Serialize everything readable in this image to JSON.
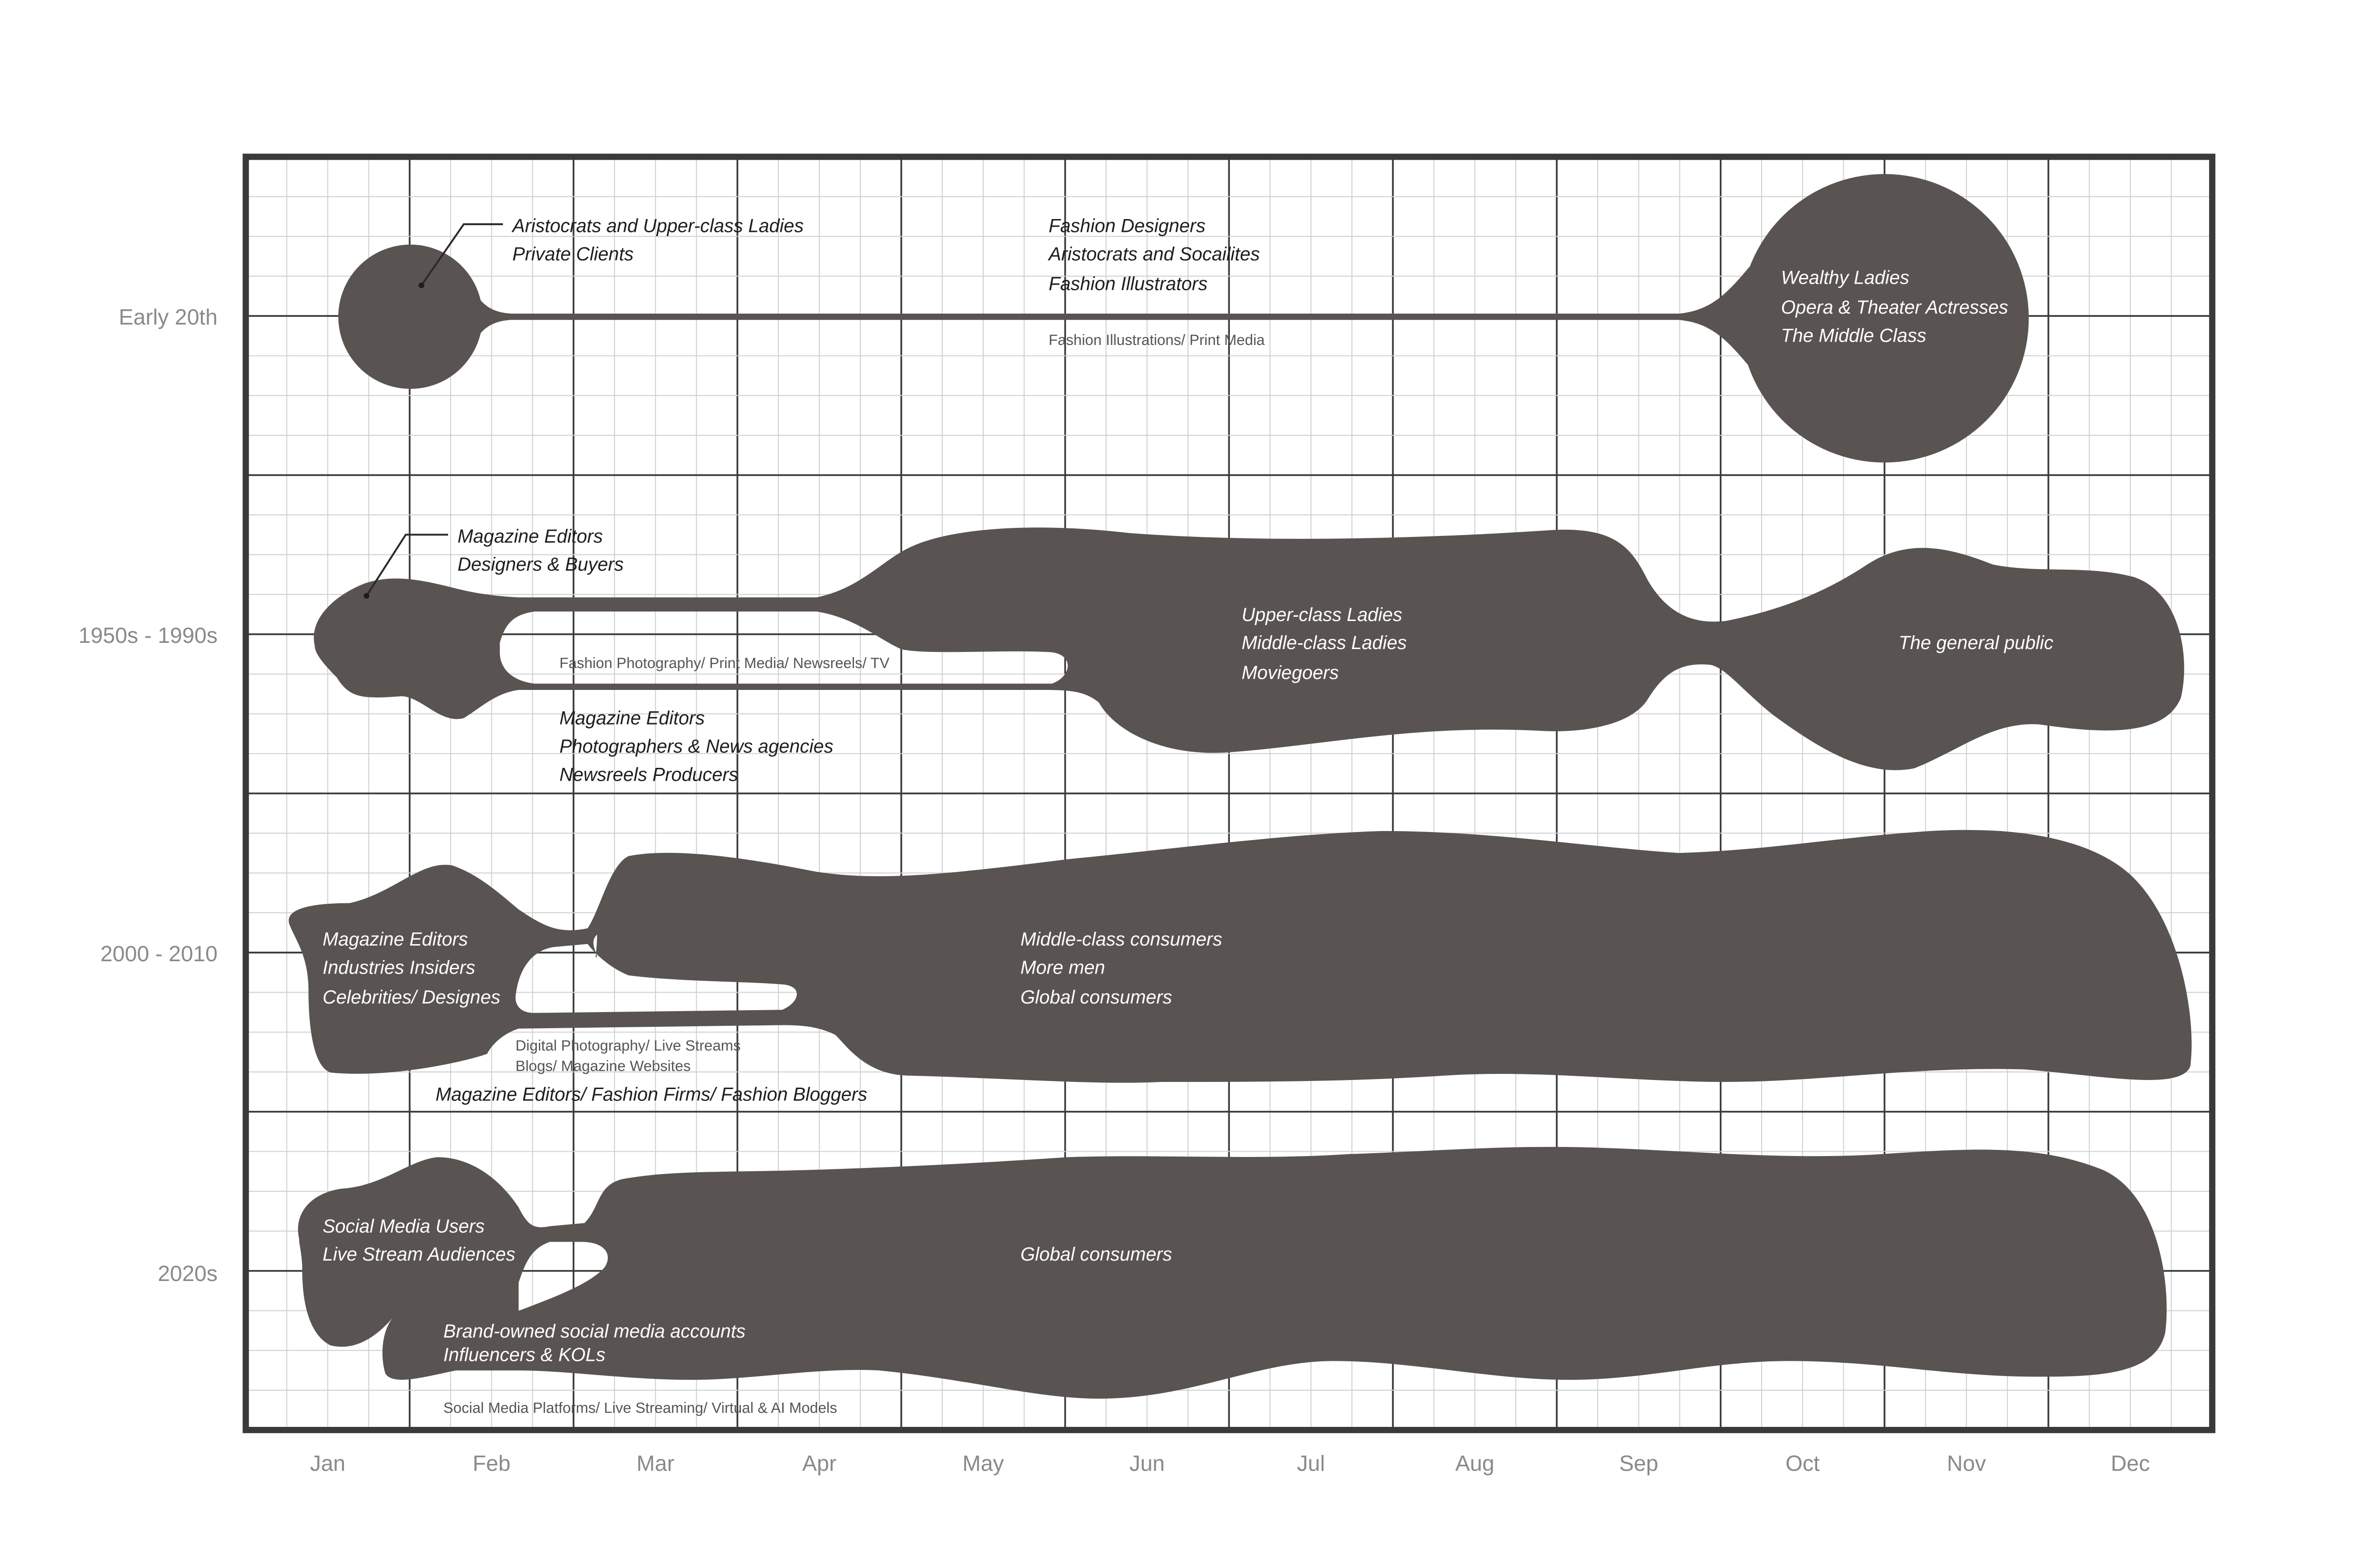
{
  "months": [
    "Jan",
    "Feb",
    "Mar",
    "Apr",
    "May",
    "Jun",
    "Jul",
    "Aug",
    "Sep",
    "Oct",
    "Nov",
    "Dec"
  ],
  "rows": [
    "Early 20th",
    "1950s - 1990s",
    "2000 - 2010",
    "2020s"
  ],
  "annotations": {
    "early": {
      "clients": [
        "Aristocrats and Upper-class Ladies",
        "Private Clients"
      ],
      "creators": [
        "Fashion Designers",
        "Aristocrats and Socailites",
        "Fashion Illustrators"
      ],
      "media": "Fashion Illustrations/ Print Media",
      "audience": [
        "Wealthy Ladies",
        "Opera & Theater Actresses",
        "The Middle Class"
      ]
    },
    "mid": {
      "clients": [
        "Magazine Editors",
        "Designers & Buyers"
      ],
      "media": "Fashion Photography/ Print Media/ Newsreels/ TV",
      "creators": [
        "Magazine Editors",
        "Photographers & News agencies",
        "Newsreels Producers"
      ],
      "audience": [
        "Upper-class Ladies",
        "Middle-class Ladies",
        "Moviegoers"
      ],
      "public": "The general public"
    },
    "y2000": {
      "clients": [
        "Magazine Editors",
        "Industries Insiders",
        "Celebrities/ Designes"
      ],
      "media": [
        "Digital Photography/ Live Streams",
        "Blogs/ Magazine Websites"
      ],
      "creators": "Magazine Editors/ Fashion Firms/ Fashion Bloggers",
      "audience": [
        "Middle-class consumers",
        "More men",
        "Global consumers"
      ]
    },
    "y2020": {
      "clients": [
        "Social Media Users",
        "Live Stream Audiences"
      ],
      "creators": [
        "Brand-owned social media accounts",
        "Influencers & KOLs"
      ],
      "media": "Social Media Platforms/ Live Streaming/ Virtual & AI Models",
      "audience": "Global consumers"
    }
  },
  "colors": {
    "blob": "#595352",
    "grid_minor": "#cfcfcf",
    "grid_major": "#3a3a3a",
    "label": "#8a8a8a"
  }
}
